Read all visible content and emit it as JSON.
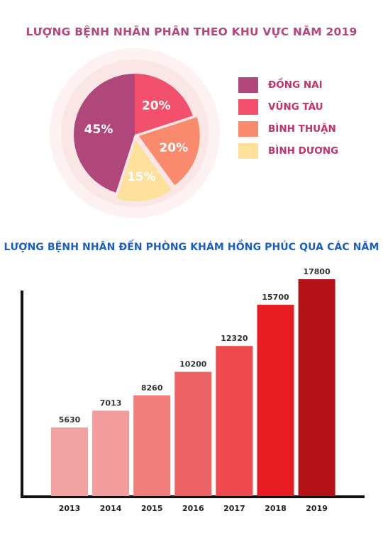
{
  "chart_data": [
    {
      "type": "pie",
      "title": "LƯỢNG BỆNH NHÂN PHÂN THEO KHU VỰC NĂM 2019",
      "categories": [
        "ĐỒNG NAI",
        "VŨNG TÀU",
        "BÌNH THUẬN",
        "BÌNH DƯƠNG"
      ],
      "values": [
        45,
        20,
        20,
        15
      ],
      "value_labels": [
        "45%",
        "20%",
        "20%",
        "15%"
      ],
      "colors": [
        "#b0477a",
        "#f2506c",
        "#f98a6e",
        "#fde09a"
      ],
      "legend_position": "right"
    },
    {
      "type": "bar",
      "title": "LƯỢNG BỆNH NHÂN ĐẾN PHÒNG KHÁM HỒNG PHÚC QUA CÁC NĂM",
      "categories": [
        "2013",
        "2014",
        "2015",
        "2016",
        "2017",
        "2018",
        "2019"
      ],
      "values": [
        5630,
        7013,
        8260,
        10200,
        12320,
        15700,
        17800
      ],
      "colors": [
        "#f3a2a2",
        "#f39c9c",
        "#f07c7c",
        "#ee6465",
        "#ee4a4d",
        "#e81c22",
        "#b41217"
      ],
      "xlabel": "",
      "ylabel": "",
      "ylim": [
        0,
        17800
      ],
      "grid": false
    }
  ]
}
